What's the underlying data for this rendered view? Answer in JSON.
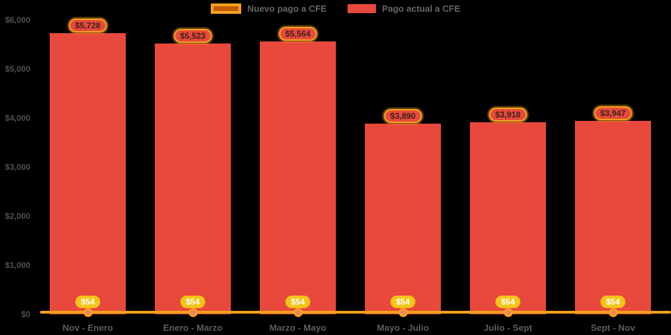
{
  "chart_data": {
    "type": "bar",
    "title": "",
    "categories": [
      "Nov - Enero",
      "Enero - Marzo",
      "Marzo - Mayo",
      "Mayo - Julio",
      "Julio - Sept",
      "Sept - Nov"
    ],
    "series": [
      {
        "name": "Nuevo pago a CFE",
        "type": "line",
        "color": "#c45c04",
        "line_color": "#f6a21c",
        "values": [
          54,
          54,
          54,
          54,
          54,
          54
        ],
        "value_labels": [
          "$54",
          "$54",
          "$54",
          "$54",
          "$54",
          "$54"
        ]
      },
      {
        "name": "Pago actual a CFE",
        "type": "bar",
        "color": "#e8493c",
        "values": [
          5728,
          5523,
          5564,
          3890,
          3918,
          3947
        ],
        "value_labels": [
          "$5,728",
          "$5,523",
          "$5,564",
          "$3,890",
          "$3,918",
          "$3,947"
        ]
      }
    ],
    "ylim": [
      0,
      6000
    ],
    "y_ticks": [
      "$0",
      "$1,000",
      "$2,000",
      "$3,000",
      "$4,000",
      "$5,000",
      "$6,000"
    ],
    "legend_position": "top",
    "grid": false,
    "background": "#000000"
  },
  "colors": {
    "background": "#000000",
    "bar_red": "#e8493c",
    "line_orange": "#f6a21c",
    "legend_nuevo_fill": "#c45c04",
    "gold_badge": "#f3c517",
    "marker_fill": "#ee8172",
    "axis_text": "#4f4f4f",
    "value_badge_text": "#3c211c"
  }
}
